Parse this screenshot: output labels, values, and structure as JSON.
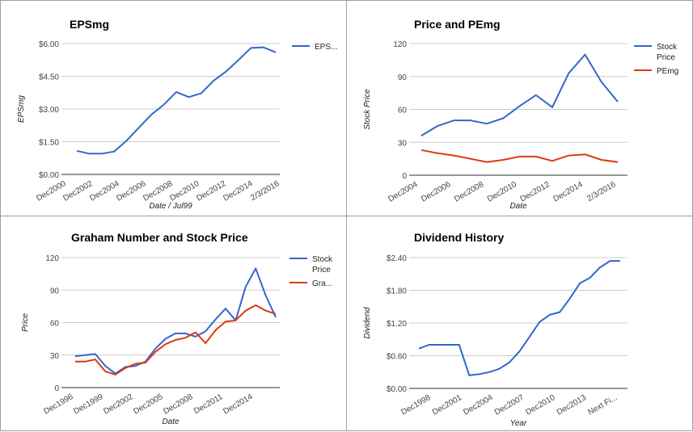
{
  "colors": {
    "blue": "#3366cc",
    "red": "#dc3912",
    "grid": "#cccccc"
  },
  "chart_data": [
    {
      "type": "line",
      "title": "EPSmg",
      "xlabel": "Date / Jul99",
      "ylabel": "EPSmg",
      "ylim": [
        0,
        6
      ],
      "yticks": [
        "$0.00",
        "$1.50",
        "$3.00",
        "$4.50",
        "$6.00"
      ],
      "xticks": [
        "Dec2000",
        "Dec2002",
        "Dec2004",
        "Dec2006",
        "Dec2008",
        "Dec2010",
        "Dec2012",
        "Dec2014",
        "2/3/2016"
      ],
      "legend_position": "right",
      "grid": true,
      "series": [
        {
          "name": "EPS...",
          "color": "#3366cc",
          "values": [
            1.08,
            0.95,
            0.95,
            1.05,
            1.55,
            2.15,
            2.75,
            3.2,
            3.78,
            3.55,
            3.72,
            4.3,
            4.72,
            5.25,
            5.8,
            5.83,
            5.6
          ]
        }
      ]
    },
    {
      "type": "line",
      "title": "Price and PEmg",
      "xlabel": "Date",
      "ylabel": "Stock Price",
      "ylim": [
        0,
        120
      ],
      "yticks": [
        "0",
        "30",
        "60",
        "90",
        "120"
      ],
      "xticks": [
        "Dec2004",
        "Dec2006",
        "Dec2008",
        "Dec2010",
        "Dec2012",
        "Dec2014",
        "2/3/2016"
      ],
      "legend_position": "right",
      "grid": true,
      "series": [
        {
          "name": "Stock Price",
          "legend_lines": [
            "Stock",
            "Price"
          ],
          "color": "#3366cc",
          "values": [
            36,
            45,
            50,
            50,
            47,
            52,
            63,
            73,
            62,
            93,
            110,
            85,
            67
          ]
        },
        {
          "name": "PEmg",
          "legend_lines": [
            "PEmg"
          ],
          "color": "#dc3912",
          "values": [
            23,
            20,
            18,
            15,
            12,
            14,
            17,
            17,
            13,
            18,
            19,
            14,
            12
          ]
        }
      ]
    },
    {
      "type": "line",
      "title": "Graham Number and Stock Price",
      "xlabel": "Date",
      "ylabel": "Price",
      "ylim": [
        0,
        120
      ],
      "yticks": [
        "0",
        "30",
        "60",
        "90",
        "120"
      ],
      "xticks": [
        "Dec1996",
        "Dec1999",
        "Dec2002",
        "Dec2005",
        "Dec2008",
        "Dec2011",
        "Dec2014"
      ],
      "legend_position": "right",
      "grid": true,
      "series": [
        {
          "name": "Stock Price",
          "legend_lines": [
            "Stock",
            "Price"
          ],
          "color": "#3366cc",
          "values": [
            29,
            30,
            31,
            20,
            13,
            19,
            20,
            24,
            36,
            45,
            50,
            50,
            47,
            52,
            63,
            73,
            62,
            93,
            110,
            85,
            65
          ]
        },
        {
          "name": "Gra...",
          "legend_lines": [
            "Gra..."
          ],
          "color": "#dc3912",
          "values": [
            24,
            24,
            26,
            15,
            12,
            18,
            22,
            23,
            33,
            40,
            44,
            46,
            51,
            41,
            53,
            61,
            62,
            71,
            76,
            71,
            68
          ]
        }
      ]
    },
    {
      "type": "line",
      "title": "Dividend History",
      "xlabel": "Year",
      "ylabel": "Dividend",
      "ylim": [
        0,
        2.4
      ],
      "yticks": [
        "$0.00",
        "$0.60",
        "$1.20",
        "$1.80",
        "$2.40"
      ],
      "xticks": [
        "Dec1998",
        "Dec2001",
        "Dec2004",
        "Dec2007",
        "Dec2010",
        "Dec2013",
        "Next Fi..."
      ],
      "legend_position": "none",
      "grid": true,
      "series": [
        {
          "name": "",
          "color": "#3366cc",
          "values": [
            0.73,
            0.8,
            0.8,
            0.8,
            0.8,
            0.24,
            0.26,
            0.3,
            0.36,
            0.48,
            0.68,
            0.95,
            1.22,
            1.35,
            1.4,
            1.65,
            1.93,
            2.03,
            2.22,
            2.34,
            2.34
          ]
        }
      ]
    }
  ]
}
